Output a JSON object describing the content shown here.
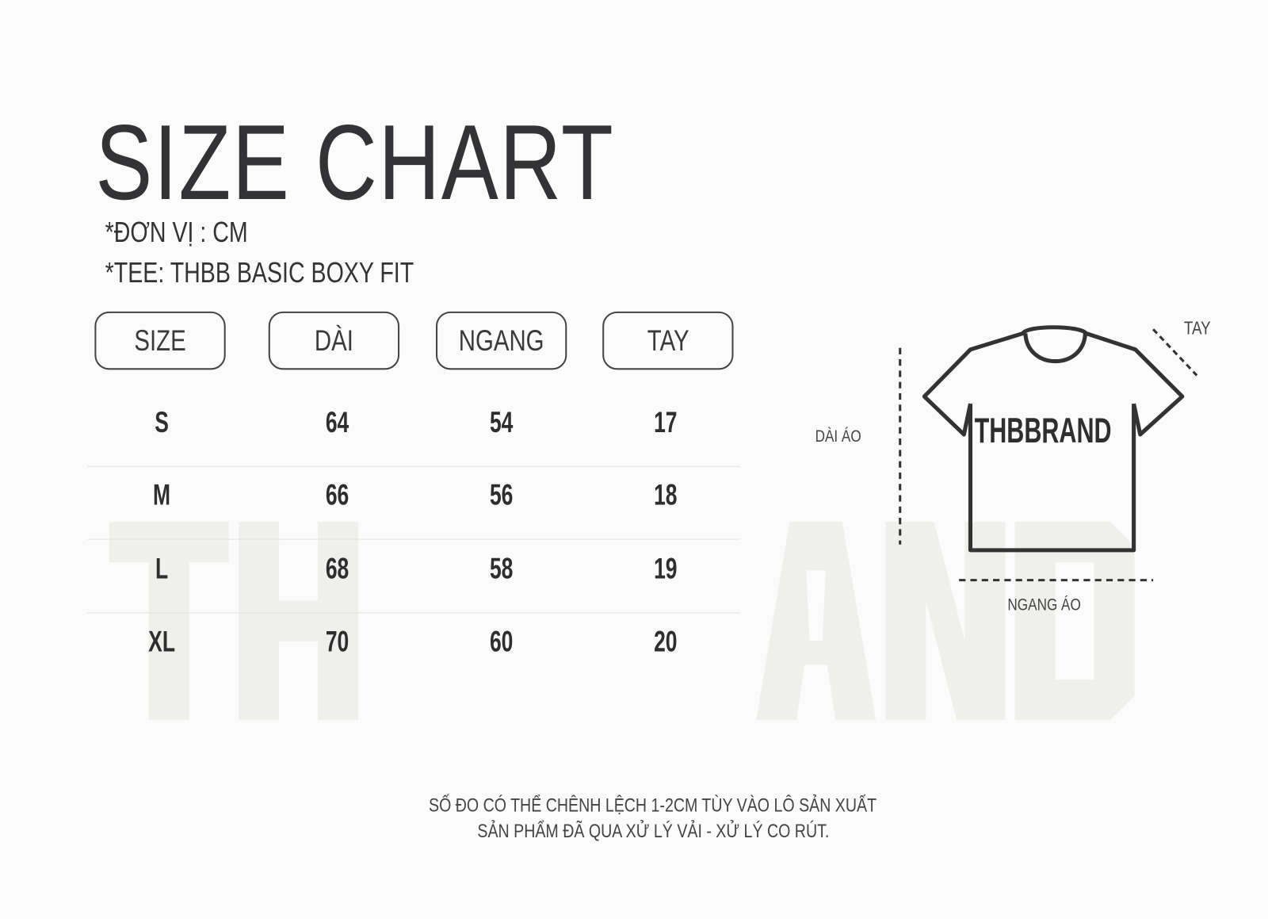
{
  "watermark": "THBBRAND",
  "title": "SIZE CHART",
  "unit_note": "*ĐƠN VỊ : CM",
  "product_note": "*TEE: THBB BASIC BOXY FIT",
  "table": {
    "headers": [
      "SIZE",
      "DÀI",
      "NGANG",
      "TAY"
    ],
    "rows": [
      [
        "S",
        "64",
        "54",
        "17"
      ],
      [
        "M",
        "66",
        "56",
        "18"
      ],
      [
        "L",
        "68",
        "58",
        "19"
      ],
      [
        "XL",
        "70",
        "60",
        "20"
      ]
    ]
  },
  "diagram": {
    "shirt_print": "THBBRAND",
    "length_label": "DÀI ÁO",
    "width_label": "NGANG ÁO",
    "sleeve_label": "TAY"
  },
  "footer": {
    "line1": "SỐ ĐO CÓ THỂ CHÊNH LỆCH 1-2CM TÙY VÀO LÔ SẢN XUẤT",
    "line2": "SẢN PHẨM ĐÃ QUA XỬ LÝ VẢI - XỬ LÝ CO RÚT."
  }
}
